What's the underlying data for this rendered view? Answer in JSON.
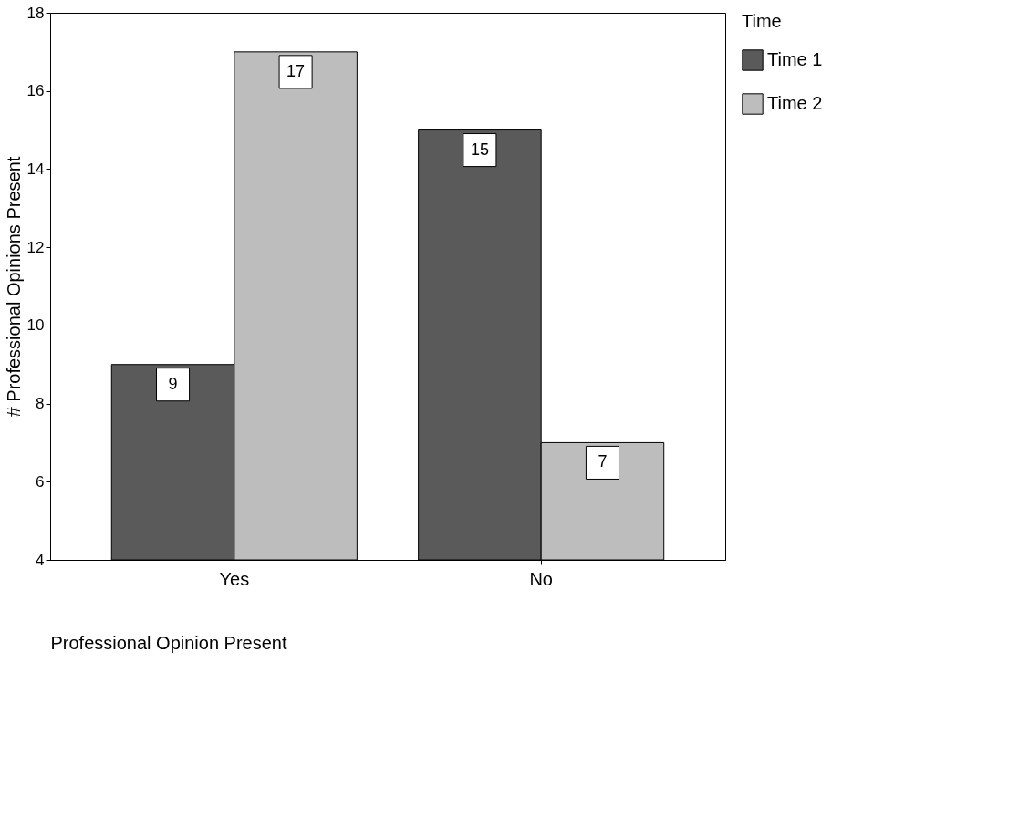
{
  "chart_data": {
    "type": "bar",
    "xlabel": "Professional Opinion Present",
    "ylabel": "# Professional Opinions Present",
    "legend_title": "Time",
    "categories": [
      "Yes",
      "No"
    ],
    "series": [
      {
        "name": "Time 1",
        "color": "#5a5a5a",
        "values": [
          9,
          15
        ]
      },
      {
        "name": "Time 2",
        "color": "#bdbdbd",
        "values": [
          17,
          7
        ]
      }
    ],
    "ylim": [
      4,
      18
    ],
    "yticks": [
      4,
      6,
      8,
      10,
      12,
      14,
      16,
      18
    ],
    "data_labels": true,
    "legend": "right",
    "grid": false
  }
}
